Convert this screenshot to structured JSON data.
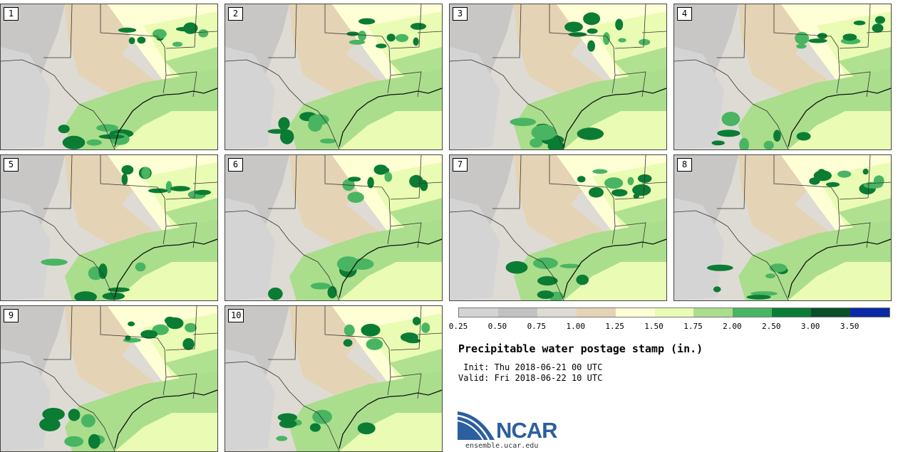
{
  "panels": [
    "1",
    "2",
    "3",
    "4",
    "5",
    "6",
    "7",
    "8",
    "9",
    "10"
  ],
  "legend": {
    "colors": [
      "#d4d4d4",
      "#c2c2c2",
      "#dedbd5",
      "#e4d4b5",
      "#ffffd6",
      "#eafcb4",
      "#aade8c",
      "#49b562",
      "#0b7c34",
      "#08502a",
      "#0a29a6"
    ],
    "ticks": [
      "0.25",
      "0.50",
      "0.75",
      "1.00",
      "1.25",
      "1.50",
      "1.75",
      "2.00",
      "2.50",
      "3.00",
      "3.50"
    ]
  },
  "title": "Precipitable water postage stamp (in.)",
  "init": " Init: Thu 2018-06-21 00 UTC",
  "valid": "Valid: Fri 2018-06-22 10 UTC",
  "logo": {
    "text": "NCAR",
    "url": "ensemble.ucar.edu"
  }
}
